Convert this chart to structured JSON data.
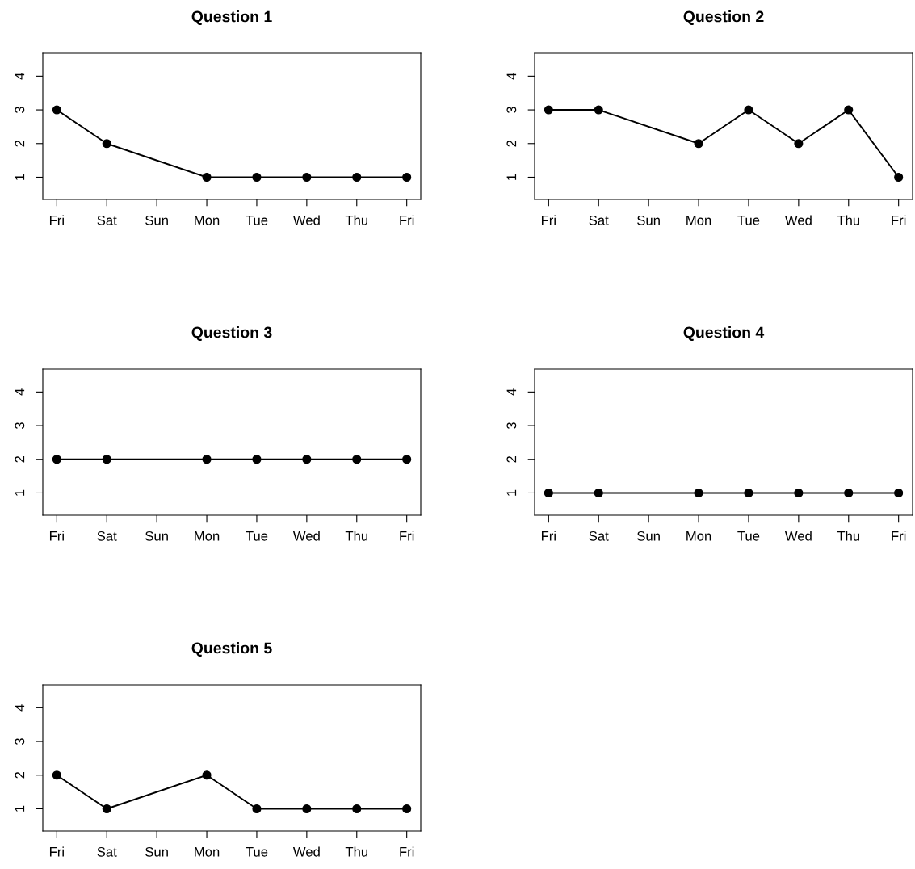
{
  "chart_data": [
    {
      "type": "line",
      "title": "Question 1",
      "categories": [
        "Fri",
        "Sat",
        "Sun",
        "Mon",
        "Tue",
        "Wed",
        "Thu",
        "Fri"
      ],
      "series": [
        {
          "color": "#000000",
          "values": [
            3,
            2,
            null,
            1,
            1,
            1,
            1,
            1
          ]
        }
      ],
      "ylim": [
        0.34,
        4.68
      ],
      "yticks": [
        1,
        2,
        3,
        4
      ],
      "marker": "circle",
      "line_style": "solid"
    },
    {
      "type": "line",
      "title": "Question 2",
      "categories": [
        "Fri",
        "Sat",
        "Sun",
        "Mon",
        "Tue",
        "Wed",
        "Thu",
        "Fri"
      ],
      "series": [
        {
          "color": "#000000",
          "values": [
            3,
            3,
            null,
            2,
            3,
            2,
            3,
            1
          ]
        }
      ],
      "ylim": [
        0.34,
        4.68
      ],
      "yticks": [
        1,
        2,
        3,
        4
      ],
      "marker": "circle",
      "line_style": "solid"
    },
    {
      "type": "line",
      "title": "Question 3",
      "categories": [
        "Fri",
        "Sat",
        "Sun",
        "Mon",
        "Tue",
        "Wed",
        "Thu",
        "Fri"
      ],
      "series": [
        {
          "color": "#000000",
          "values": [
            2,
            2,
            null,
            2,
            2,
            2,
            2,
            2
          ]
        }
      ],
      "ylim": [
        0.34,
        4.68
      ],
      "yticks": [
        1,
        2,
        3,
        4
      ],
      "marker": "circle",
      "line_style": "solid"
    },
    {
      "type": "line",
      "title": "Question 4",
      "categories": [
        "Fri",
        "Sat",
        "Sun",
        "Mon",
        "Tue",
        "Wed",
        "Thu",
        "Fri"
      ],
      "series": [
        {
          "color": "#000000",
          "values": [
            1,
            1,
            null,
            1,
            1,
            1,
            1,
            1
          ]
        }
      ],
      "ylim": [
        0.34,
        4.68
      ],
      "yticks": [
        1,
        2,
        3,
        4
      ],
      "marker": "circle",
      "line_style": "solid"
    },
    {
      "type": "line",
      "title": "Question 5",
      "categories": [
        "Fri",
        "Sat",
        "Sun",
        "Mon",
        "Tue",
        "Wed",
        "Thu",
        "Fri"
      ],
      "series": [
        {
          "color": "#000000",
          "values": [
            2,
            1,
            null,
            2,
            1,
            1,
            1,
            1
          ]
        }
      ],
      "ylim": [
        0.34,
        4.68
      ],
      "yticks": [
        1,
        2,
        3,
        4
      ],
      "marker": "circle",
      "line_style": "solid"
    }
  ]
}
